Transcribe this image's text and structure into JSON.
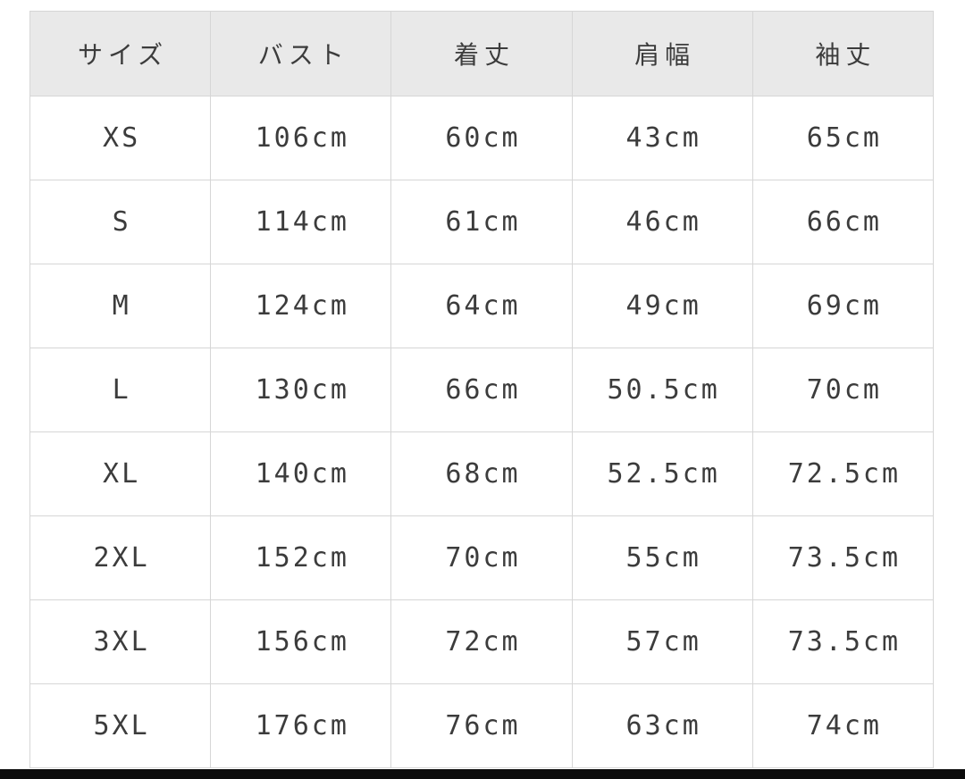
{
  "chart_data": {
    "type": "table",
    "columns": [
      "サイズ",
      "バスト",
      "着丈",
      "肩幅",
      "袖丈"
    ],
    "rows": [
      [
        "XS",
        "106cm",
        "60cm",
        "43cm",
        "65cm"
      ],
      [
        "S",
        "114cm",
        "61cm",
        "46cm",
        "66cm"
      ],
      [
        "M",
        "124cm",
        "64cm",
        "49cm",
        "69cm"
      ],
      [
        "L",
        "130cm",
        "66cm",
        "50.5cm",
        "70cm"
      ],
      [
        "XL",
        "140cm",
        "68cm",
        "52.5cm",
        "72.5cm"
      ],
      [
        "2XL",
        "152cm",
        "70cm",
        "55cm",
        "73.5cm"
      ],
      [
        "3XL",
        "156cm",
        "72cm",
        "57cm",
        "73.5cm"
      ],
      [
        "5XL",
        "176cm",
        "76cm",
        "63cm",
        "74cm"
      ]
    ]
  },
  "colors": {
    "header_bg": "#e9e9e9",
    "grid_border": "#d6d6d6",
    "text": "#3c3c3c",
    "page_bg": "#ffffff",
    "bottom_bar": "#0c0c0c"
  }
}
